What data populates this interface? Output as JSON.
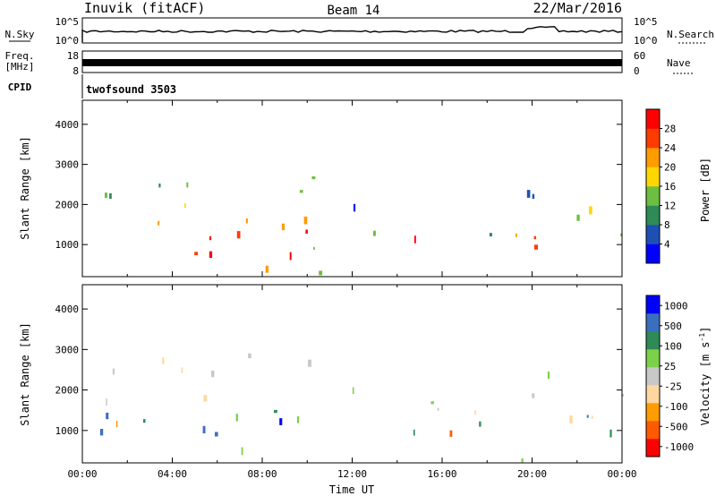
{
  "header": {
    "station": "Inuvik (fitACF)",
    "beam": "Beam 14",
    "date": "22/Mar/2016"
  },
  "strip": {
    "nsky_label": "N.Sky",
    "nsky_ticks": [
      "10^5",
      "10^0"
    ],
    "nsearch_label": "N.Search",
    "nsearch_ticks": [
      "10^5",
      "10^0"
    ],
    "freq_label_line1": "Freq.",
    "freq_label_line2": "[MHz]",
    "freq_ticks": [
      "18",
      "8"
    ],
    "nave_label": "Nave",
    "nave_ticks": [
      "60",
      "0"
    ],
    "cpid_label": "CPID",
    "cpid_value": "twofsound 3503"
  },
  "chart_data": [
    {
      "type": "heatmap",
      "title": "",
      "ylabel": "Slant Range [km]",
      "yticks": [
        "4000",
        "3000",
        "2000",
        "1000"
      ],
      "ylim": [
        200,
        4600
      ],
      "xlim": [
        0,
        24
      ],
      "colorbar_label": "Power [dB]",
      "colorbar_ticks": [
        "28",
        "24",
        "20",
        "16",
        "12",
        "8",
        "4"
      ],
      "colorbar_colors": [
        "#0000ff",
        "#1e50b4",
        "#2e8b57",
        "#6cbf40",
        "#ffd700",
        "#ff9c00",
        "#ff3c00",
        "#ff0000"
      ]
    },
    {
      "type": "heatmap",
      "title": "",
      "ylabel": "Slant Range [km]",
      "yticks": [
        "4000",
        "3000",
        "2000",
        "1000"
      ],
      "ylim": [
        200,
        4600
      ],
      "xlim": [
        0,
        24
      ],
      "xticks": [
        "00:00",
        "04:00",
        "08:00",
        "12:00",
        "16:00",
        "20:00",
        "00:00"
      ],
      "xlabel": "Time UT",
      "colorbar_label": "Velocity [m s",
      "colorbar_label_sup": "-1",
      "colorbar_label_end": "]",
      "colorbar_ticks": [
        "1000",
        "500",
        "100",
        "25",
        "-25",
        "-100",
        "-500",
        "-1000"
      ],
      "colorbar_colors": [
        "#ff0000",
        "#ff5a00",
        "#ff9c00",
        "#ffd8a0",
        "#c8c8c8",
        "#7cd04a",
        "#2e8b57",
        "#3a6fbf",
        "#0000ff"
      ]
    }
  ]
}
